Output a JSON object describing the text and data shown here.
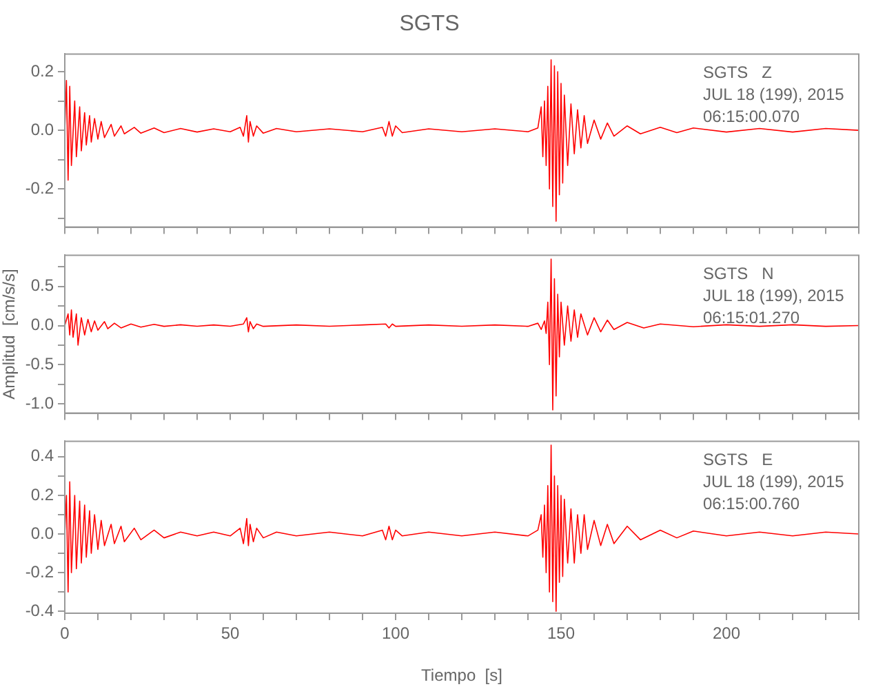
{
  "chart_data": [
    {
      "type": "line",
      "title": "SGTS",
      "annotations": [
        "SGTS   Z",
        "JUL 18 (199), 2015",
        "06:15:00.070"
      ],
      "tick_labels": "y",
      "grid": false,
      "xlim": [
        0,
        240
      ],
      "xticks": [
        {
          "value": 0,
          "label": null
        },
        {
          "value": 10,
          "label": null
        },
        {
          "value": 20,
          "label": null
        },
        {
          "value": 30,
          "label": null
        },
        {
          "value": 40,
          "label": null
        },
        {
          "value": 50,
          "label": null
        },
        {
          "value": 60,
          "label": null
        },
        {
          "value": 70,
          "label": null
        },
        {
          "value": 80,
          "label": null
        },
        {
          "value": 90,
          "label": null
        },
        {
          "value": 100,
          "label": null
        },
        {
          "value": 110,
          "label": null
        },
        {
          "value": 120,
          "label": null
        },
        {
          "value": 130,
          "label": null
        },
        {
          "value": 140,
          "label": null
        },
        {
          "value": 150,
          "label": null
        },
        {
          "value": 160,
          "label": null
        },
        {
          "value": 170,
          "label": null
        },
        {
          "value": 180,
          "label": null
        },
        {
          "value": 190,
          "label": null
        },
        {
          "value": 200,
          "label": null
        },
        {
          "value": 210,
          "label": null
        },
        {
          "value": 220,
          "label": null
        },
        {
          "value": 230,
          "label": null
        },
        {
          "value": 240,
          "label": null
        }
      ],
      "ylim": [
        -0.33,
        0.26
      ],
      "yticks": [
        {
          "value": -0.3,
          "label": null
        },
        -0.2,
        {
          "value": -0.1,
          "label": null
        },
        {
          "value": 0,
          "label": "0.0"
        },
        {
          "value": 0.1,
          "label": null
        },
        0.2
      ],
      "series": [
        {
          "color": "#ff0000",
          "x": [
            0,
            0.5,
            1,
            1.5,
            2,
            3,
            3.5,
            4.5,
            5,
            6,
            6.5,
            7.5,
            8,
            9,
            10,
            11,
            12,
            14,
            15,
            17,
            18,
            21,
            23,
            27,
            30,
            35,
            40,
            45,
            50,
            53,
            54,
            55,
            55.5,
            56,
            57,
            58,
            60,
            64,
            70,
            80,
            90,
            96,
            97,
            98,
            99,
            100,
            102,
            110,
            120,
            130,
            140,
            143,
            144,
            144.5,
            145,
            145.5,
            146,
            146.5,
            147,
            147.5,
            148,
            148.5,
            149,
            149.5,
            150,
            150.5,
            151,
            152,
            153,
            154,
            155,
            156,
            157,
            158,
            160,
            162,
            164,
            166,
            170,
            174,
            180,
            185,
            190,
            200,
            210,
            220,
            230,
            240
          ],
          "values": [
            0,
            0.17,
            -0.17,
            0.15,
            -0.12,
            0.1,
            -0.09,
            0.08,
            -0.07,
            0.06,
            -0.05,
            0.05,
            -0.04,
            0.04,
            -0.03,
            0.03,
            -0.025,
            0.02,
            -0.02,
            0.015,
            -0.012,
            0.01,
            -0.01,
            0.008,
            -0.008,
            0.006,
            -0.006,
            0.005,
            -0.005,
            0.01,
            -0.02,
            0.05,
            -0.04,
            0.03,
            -0.02,
            0.015,
            -0.01,
            0.006,
            -0.005,
            0.005,
            -0.005,
            0.01,
            -0.02,
            0.03,
            -0.02,
            0.015,
            -0.008,
            0.005,
            -0.005,
            0.005,
            -0.005,
            0.008,
            0.08,
            -0.09,
            0.1,
            -0.12,
            0.15,
            -0.2,
            0.24,
            -0.26,
            0.22,
            -0.31,
            0.2,
            -0.22,
            0.16,
            -0.18,
            0.12,
            -0.12,
            0.09,
            -0.08,
            0.07,
            -0.06,
            0.05,
            -0.045,
            0.035,
            -0.03,
            0.025,
            -0.02,
            0.015,
            -0.012,
            0.01,
            -0.008,
            0.008,
            -0.006,
            0.006,
            -0.006,
            0.006,
            0
          ]
        }
      ]
    },
    {
      "type": "line",
      "ylabel": "Amplitud  [cm/s/s]",
      "annotations": [
        "SGTS   N",
        "JUL 18 (199), 2015",
        "06:15:01.270"
      ],
      "tick_labels": "y",
      "grid": false,
      "xlim": [
        0,
        240
      ],
      "xticks": [
        {
          "value": 0,
          "label": null
        },
        {
          "value": 10,
          "label": null
        },
        {
          "value": 20,
          "label": null
        },
        {
          "value": 30,
          "label": null
        },
        {
          "value": 40,
          "label": null
        },
        {
          "value": 50,
          "label": null
        },
        {
          "value": 60,
          "label": null
        },
        {
          "value": 70,
          "label": null
        },
        {
          "value": 80,
          "label": null
        },
        {
          "value": 90,
          "label": null
        },
        {
          "value": 100,
          "label": null
        },
        {
          "value": 110,
          "label": null
        },
        {
          "value": 120,
          "label": null
        },
        {
          "value": 130,
          "label": null
        },
        {
          "value": 140,
          "label": null
        },
        {
          "value": 150,
          "label": null
        },
        {
          "value": 160,
          "label": null
        },
        {
          "value": 170,
          "label": null
        },
        {
          "value": 180,
          "label": null
        },
        {
          "value": 190,
          "label": null
        },
        {
          "value": 200,
          "label": null
        },
        {
          "value": 210,
          "label": null
        },
        {
          "value": 220,
          "label": null
        },
        {
          "value": 230,
          "label": null
        },
        {
          "value": 240,
          "label": null
        }
      ],
      "ylim": [
        -1.12,
        0.9
      ],
      "yticks": [
        {
          "value": -1,
          "label": "-1.0"
        },
        {
          "value": -0.75,
          "label": null
        },
        -0.5,
        {
          "value": -0.25,
          "label": null
        },
        {
          "value": 0,
          "label": "0.0"
        },
        {
          "value": 0.25,
          "label": null
        },
        0.5,
        {
          "value": 0.75,
          "label": null
        }
      ],
      "series": [
        {
          "color": "#ff0000",
          "x": [
            0,
            1,
            1.5,
            2,
            2.5,
            3.5,
            4,
            5,
            6,
            7,
            8,
            9,
            10,
            12,
            13,
            15,
            17,
            20,
            23,
            27,
            30,
            35,
            40,
            45,
            50,
            54,
            55,
            55.5,
            56,
            57,
            58,
            60,
            70,
            80,
            90,
            97,
            98,
            99,
            100,
            110,
            120,
            130,
            140,
            143,
            144,
            145,
            145.5,
            146,
            146.5,
            147,
            147.5,
            148,
            148.5,
            149,
            149.5,
            150,
            151,
            152,
            153,
            154,
            155,
            156,
            158,
            160,
            162,
            164,
            166,
            170,
            175,
            180,
            190,
            200,
            210,
            220,
            230,
            240
          ],
          "values": [
            0,
            0.15,
            -0.12,
            0.2,
            -0.15,
            0.15,
            -0.25,
            0.1,
            -0.12,
            0.08,
            -0.08,
            0.06,
            -0.06,
            0.05,
            -0.04,
            0.03,
            -0.03,
            0.02,
            -0.02,
            0.015,
            -0.01,
            0.01,
            -0.008,
            0.008,
            -0.008,
            0.02,
            0.1,
            -0.08,
            0.05,
            -0.04,
            0.02,
            -0.01,
            0.008,
            -0.008,
            0.008,
            0.02,
            -0.03,
            0.02,
            -0.01,
            0.008,
            -0.008,
            0.008,
            -0.01,
            0.03,
            -0.05,
            0.06,
            -0.1,
            0.3,
            -0.5,
            0.85,
            -1.08,
            0.6,
            -0.9,
            0.4,
            -0.4,
            0.3,
            -0.25,
            0.25,
            -0.2,
            0.2,
            -0.15,
            0.15,
            -0.12,
            0.1,
            -0.08,
            0.07,
            -0.05,
            0.04,
            -0.03,
            0.02,
            -0.015,
            0.01,
            -0.01,
            0.01,
            -0.01,
            0
          ]
        }
      ]
    },
    {
      "type": "line",
      "xlabel": "Tiempo  [s]",
      "annotations": [
        "SGTS   E",
        "JUL 18 (199), 2015",
        "06:15:00.760"
      ],
      "grid": false,
      "xlim": [
        0,
        240
      ],
      "xticks": [
        0,
        {
          "value": 10,
          "label": null
        },
        {
          "value": 20,
          "label": null
        },
        {
          "value": 30,
          "label": null
        },
        {
          "value": 40,
          "label": null
        },
        50,
        {
          "value": 60,
          "label": null
        },
        {
          "value": 70,
          "label": null
        },
        {
          "value": 80,
          "label": null
        },
        {
          "value": 90,
          "label": null
        },
        100,
        {
          "value": 110,
          "label": null
        },
        {
          "value": 120,
          "label": null
        },
        {
          "value": 130,
          "label": null
        },
        {
          "value": 140,
          "label": null
        },
        150,
        {
          "value": 160,
          "label": null
        },
        {
          "value": 170,
          "label": null
        },
        {
          "value": 180,
          "label": null
        },
        {
          "value": 190,
          "label": null
        },
        200,
        {
          "value": 210,
          "label": null
        },
        {
          "value": 220,
          "label": null
        },
        {
          "value": 230,
          "label": null
        },
        {
          "value": 240,
          "label": null
        }
      ],
      "ylim": [
        -0.41,
        0.48
      ],
      "yticks": [
        {
          "value": -0.4,
          "label": "-0.4"
        },
        {
          "value": -0.3,
          "label": null
        },
        -0.2,
        {
          "value": -0.1,
          "label": null
        },
        {
          "value": 0,
          "label": "0.0"
        },
        {
          "value": 0.1,
          "label": null
        },
        0.2,
        {
          "value": 0.3,
          "label": null
        },
        0.4
      ],
      "series": [
        {
          "color": "#ff0000",
          "x": [
            0,
            0.5,
            1,
            1.5,
            2,
            3,
            3.5,
            4.5,
            5,
            6,
            6.5,
            7.5,
            8,
            9,
            10,
            11,
            12,
            14,
            15,
            17,
            18,
            21,
            23,
            27,
            30,
            35,
            40,
            45,
            50,
            53,
            54,
            55,
            55.5,
            56,
            57,
            58,
            60,
            64,
            70,
            80,
            90,
            96,
            97,
            98,
            99,
            100,
            102,
            110,
            120,
            130,
            140,
            143,
            144,
            144.5,
            145,
            145.5,
            146,
            146.5,
            147,
            147.5,
            148,
            148.5,
            149,
            149.5,
            150,
            150.5,
            151,
            152,
            153,
            154,
            155,
            156,
            157,
            158,
            160,
            162,
            164,
            166,
            170,
            174,
            180,
            185,
            190,
            200,
            210,
            220,
            230,
            240
          ],
          "values": [
            0,
            0.2,
            -0.3,
            0.27,
            -0.2,
            0.2,
            -0.18,
            0.17,
            -0.15,
            0.15,
            -0.12,
            0.12,
            -0.1,
            0.1,
            -0.08,
            0.07,
            -0.06,
            0.05,
            -0.05,
            0.04,
            -0.04,
            0.03,
            -0.03,
            0.02,
            -0.02,
            0.01,
            -0.01,
            0.01,
            -0.01,
            0.03,
            -0.05,
            0.08,
            -0.06,
            0.05,
            -0.04,
            0.03,
            -0.02,
            0.01,
            -0.01,
            0.01,
            -0.01,
            0.02,
            -0.03,
            0.04,
            -0.03,
            0.02,
            -0.01,
            0.01,
            -0.01,
            0.01,
            -0.01,
            0.02,
            0.1,
            -0.12,
            0.15,
            -0.2,
            0.25,
            -0.3,
            0.46,
            -0.35,
            0.3,
            -0.4,
            0.25,
            -0.25,
            0.2,
            -0.22,
            0.18,
            -0.15,
            0.13,
            -0.15,
            0.1,
            -0.1,
            0.1,
            -0.08,
            0.07,
            -0.06,
            0.05,
            -0.05,
            0.04,
            -0.03,
            0.02,
            -0.02,
            0.015,
            -0.01,
            0.01,
            -0.01,
            0.01,
            0
          ]
        }
      ]
    }
  ]
}
